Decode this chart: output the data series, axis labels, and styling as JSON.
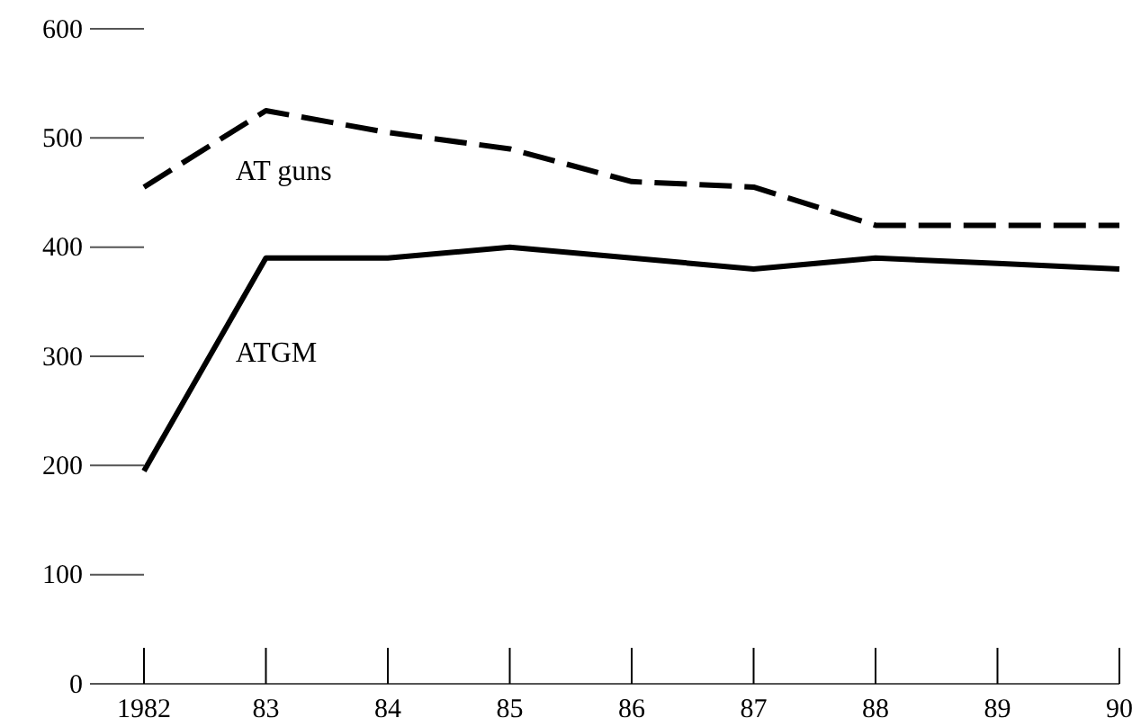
{
  "chart_data": {
    "type": "line",
    "categories": [
      "1982",
      "83",
      "84",
      "85",
      "86",
      "87",
      "88",
      "89",
      "90"
    ],
    "series": [
      {
        "name": "AT guns",
        "color": "#000000",
        "line_style": "dashed",
        "values": [
          455,
          525,
          505,
          490,
          460,
          455,
          420,
          420,
          420
        ]
      },
      {
        "name": "ATGM",
        "color": "#000000",
        "line_style": "solid",
        "values": [
          195,
          390,
          390,
          400,
          390,
          380,
          390,
          385,
          380
        ]
      }
    ],
    "ylim": [
      0,
      600
    ],
    "yticks": [
      0,
      100,
      200,
      300,
      400,
      500,
      600
    ],
    "legend": false,
    "marker": "none"
  }
}
